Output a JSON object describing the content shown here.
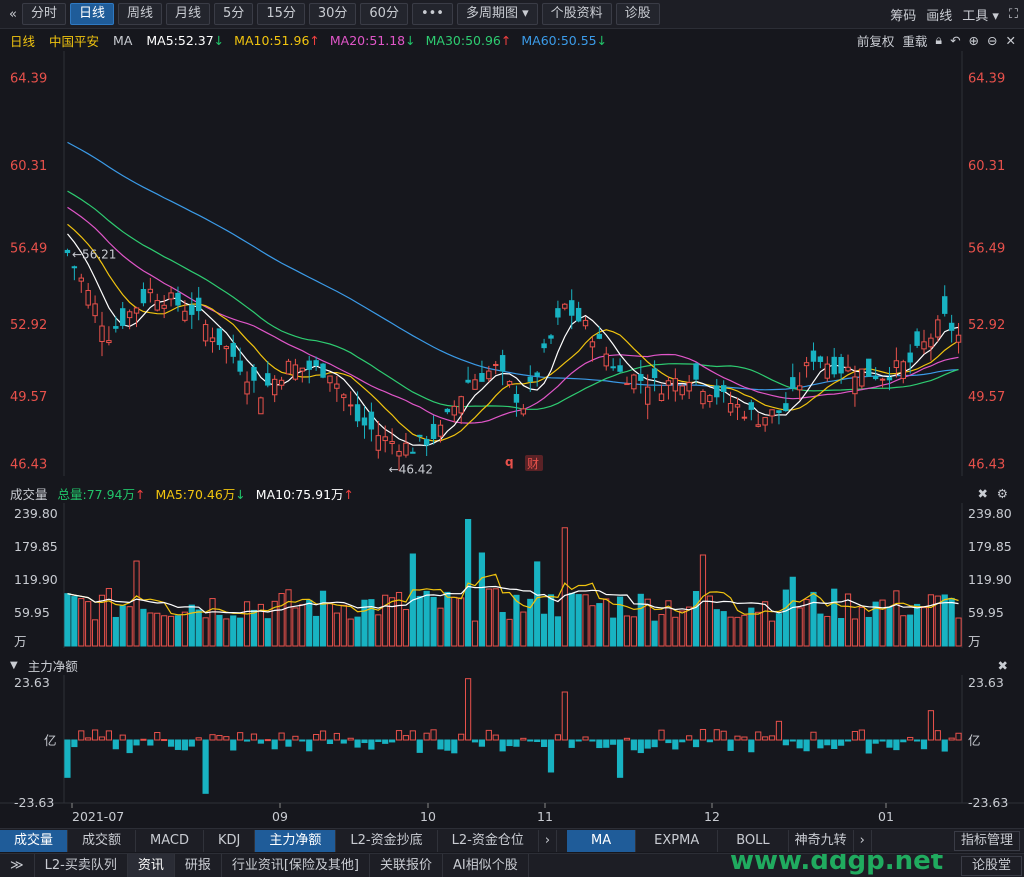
{
  "toolbar": {
    "back": "«",
    "tabs": [
      "分时",
      "日线",
      "周线",
      "月线",
      "5分",
      "15分",
      "30分",
      "60分"
    ],
    "more": "•••",
    "multi": "多周期图 ▾",
    "stock_info": "个股资料",
    "diagnose": "诊股",
    "right": [
      "筹码",
      "画线",
      "工具 ▾"
    ]
  },
  "info": {
    "period": "日线",
    "stock": "中国平安",
    "ma_label": "MA",
    "ma": [
      {
        "label": "MA5:52.37",
        "arrow": "↓",
        "color": "#ffffff",
        "arrow_color": "#21c46a"
      },
      {
        "label": "MA10:51.96",
        "arrow": "↑",
        "color": "#f1c40f",
        "arrow_color": "#f04040"
      },
      {
        "label": "MA20:51.18",
        "arrow": "↓",
        "color": "#e056c8",
        "arrow_color": "#21c46a"
      },
      {
        "label": "MA30:50.96",
        "arrow": "↑",
        "color": "#2ecc71",
        "arrow_color": "#f04040"
      },
      {
        "label": "MA60:50.55",
        "arrow": "↓",
        "color": "#3b9be8",
        "arrow_color": "#21c46a"
      }
    ],
    "right": [
      "前复权",
      "重载"
    ]
  },
  "price_axis": [
    "64.39",
    "60.31",
    "56.49",
    "52.92",
    "49.57",
    "46.43"
  ],
  "annotations": {
    "high": "56.21",
    "low": "46.42",
    "q": "q",
    "cai": "财"
  },
  "volume": {
    "title": "成交量",
    "items": [
      {
        "label": "总量:77.94万",
        "arrow": "↑",
        "color": "#21c46a"
      },
      {
        "label": "MA5:70.46万",
        "arrow": "↓",
        "color": "#f1c40f"
      },
      {
        "label": "MA10:75.91万",
        "arrow": "↑",
        "color": "#ffffff"
      }
    ],
    "axis": [
      "239.80",
      "179.85",
      "119.90",
      "59.95",
      "万"
    ]
  },
  "flow": {
    "title": "主力净额",
    "axis": [
      "23.63",
      "亿",
      "-23.63"
    ]
  },
  "dates": [
    "2021-07",
    "09",
    "10",
    "11",
    "12",
    "01"
  ],
  "bottom_tabs": [
    "成交量",
    "成交额",
    "MACD",
    "KDJ",
    "主力净额",
    "L2-资金抄底",
    "L2-资金仓位"
  ],
  "bottom_tabs2": [
    "MA",
    "EXPMA",
    "BOLL",
    "神奇九转"
  ],
  "indicator_btn": "指标管理",
  "status_tabs": [
    "L2-买卖队列",
    "资讯",
    "研报",
    "行业资讯[保险及其他]",
    "关联报价",
    "AI相似个股"
  ],
  "status_right": "论股堂",
  "watermark": "www.ddgp.net",
  "colors": {
    "up": "#e8514b",
    "down": "#18b3c2",
    "ma5": "#ffffff",
    "ma10": "#f1c40f",
    "ma20": "#e056c8",
    "ma30": "#2ecc71",
    "ma60": "#3b9be8"
  }
}
